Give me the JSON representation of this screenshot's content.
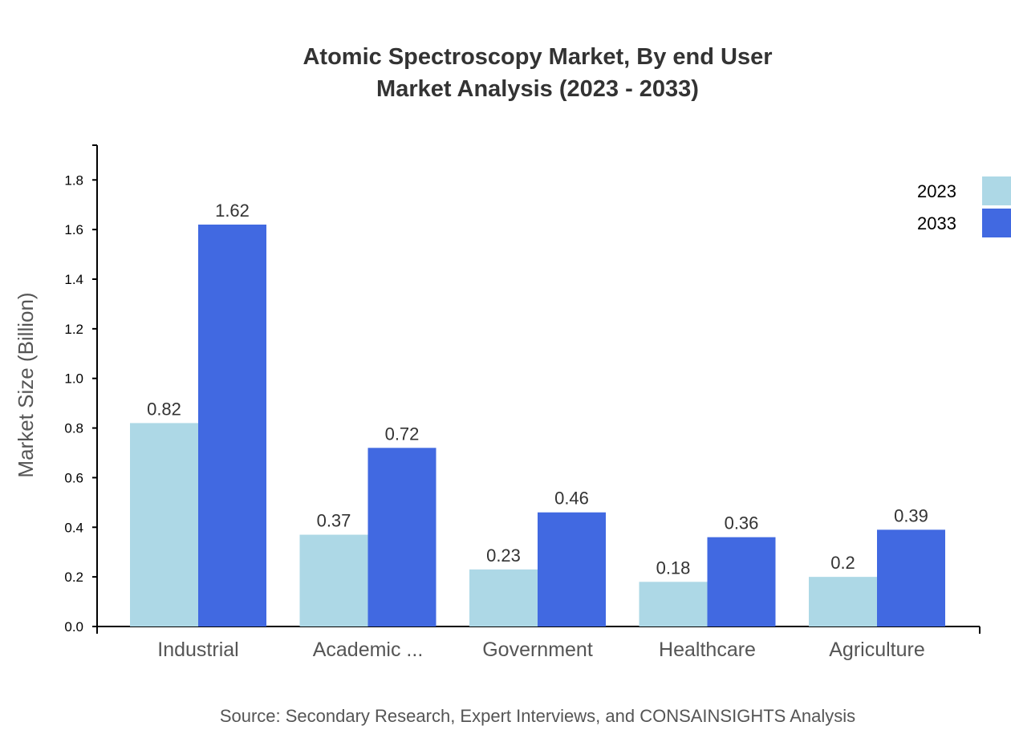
{
  "chart_data": {
    "type": "bar",
    "title": [
      "Atomic Spectroscopy Market, By end User",
      "Market Analysis (2023 - 2033)"
    ],
    "ylabel": "Market Size (Billion)",
    "xlabel": "",
    "ylim": [
      0,
      1.94
    ],
    "yticks": [
      "0.0",
      "0.2",
      "0.4",
      "0.6",
      "0.8",
      "1.0",
      "1.2",
      "1.4",
      "1.6",
      "1.8"
    ],
    "categories": [
      "Industrial",
      "Academic ...",
      "Government",
      "Healthcare",
      "Agriculture"
    ],
    "series": [
      {
        "name": "2023",
        "color": "#add8e6",
        "values": [
          0.82,
          0.37,
          0.23,
          0.18,
          0.2
        ]
      },
      {
        "name": "2033",
        "color": "#4169e1",
        "values": [
          1.62,
          0.72,
          0.46,
          0.36,
          0.39
        ]
      }
    ],
    "grid": false,
    "legend": "top-right",
    "source": "Source: Secondary Research, Expert Interviews, and CONSAINSIGHTS Analysis"
  }
}
